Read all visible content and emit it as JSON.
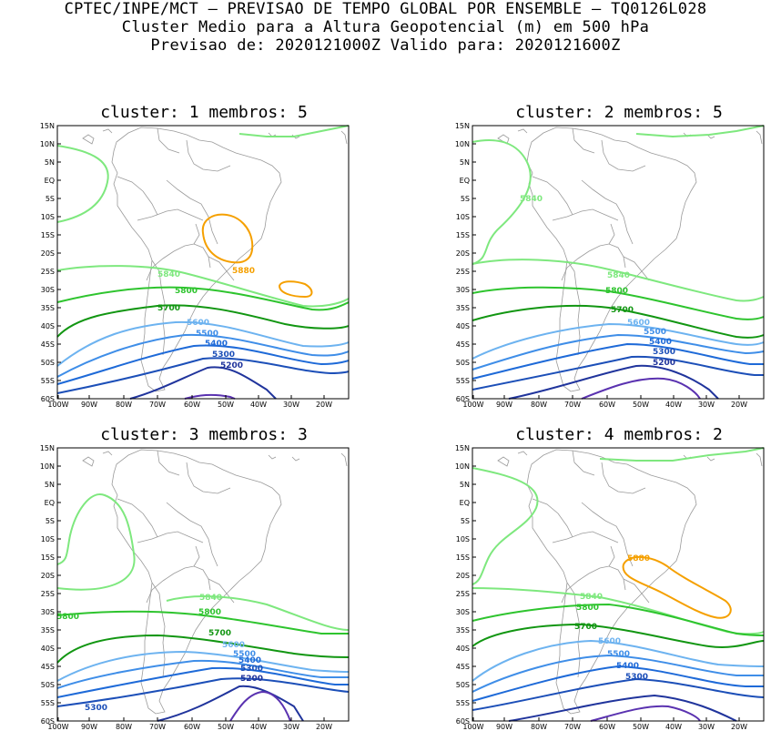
{
  "header": {
    "line1": "CPTEC/INPE/MCT – PREVISAO DE TEMPO GLOBAL POR ENSEMBLE – TQ0126L028",
    "line2": "Cluster Medio para a Altura Geopotencial (m) em 500 hPa",
    "line3": "Previsao de: 2020121000Z   Valido para: 2020121600Z"
  },
  "axes": {
    "lat_ticks": [
      "15N",
      "10N",
      "5N",
      "EQ",
      "5S",
      "10S",
      "15S",
      "20S",
      "25S",
      "30S",
      "35S",
      "40S",
      "45S",
      "50S",
      "55S",
      "60S"
    ],
    "lon_ticks": [
      "100W",
      "90W",
      "80W",
      "70W",
      "60W",
      "50W",
      "40W",
      "30W",
      "20W"
    ]
  },
  "colors": {
    "c5880": "#f5a000",
    "c5840": "#7ee87e",
    "c5800": "#2ec42e",
    "c5700": "#129612",
    "c5600": "#6db3f0",
    "c5500": "#3f8ee8",
    "c5400": "#1e6ad8",
    "c5300": "#1c4fb8",
    "c5200": "#20349c",
    "c5100": "#5a32b0"
  },
  "panels": [
    {
      "title": "cluster: 1  membros: 5",
      "labels": {
        "l5880": "5880",
        "l5840": "5840",
        "l5800": "5800",
        "l5700": "5700",
        "l5600": "5600",
        "l5500": "5500",
        "l5400": "5400",
        "l5300": "5300",
        "l5200": "5200"
      }
    },
    {
      "title": "cluster: 2  membros: 5",
      "labels": {
        "l5840a": "5840",
        "l5840b": "5840",
        "l5800": "5800",
        "l5700": "5700",
        "l5600": "5600",
        "l5500": "5500",
        "l5400": "5400",
        "l5300": "5300",
        "l5200": "5200"
      }
    },
    {
      "title": "cluster: 3  membros: 3",
      "labels": {
        "l5840": "5840",
        "l5800a": "5800",
        "l5800b": "5800",
        "l5700": "5700",
        "l5600": "5600",
        "l5500": "5500",
        "l5400": "5400",
        "l5300a": "5300",
        "l5300b": "5300",
        "l5200": "5200"
      }
    },
    {
      "title": "cluster: 4  membros: 2",
      "labels": {
        "l5880": "5880",
        "l5840": "5840",
        "l5800": "5800",
        "l5700": "5700",
        "l5600": "5600",
        "l5500": "5500",
        "l5400": "5400",
        "l5300": "5300"
      }
    }
  ]
}
